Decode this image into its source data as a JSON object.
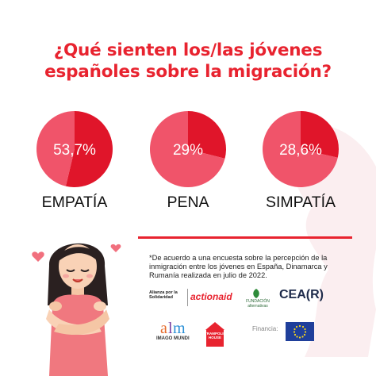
{
  "title": {
    "line1": "¿Qué sienten los/las jóvenes",
    "line2": "españoles sobre la migración?"
  },
  "colors": {
    "accent": "#e8232f",
    "slice_light": "#f0546a",
    "slice_dark": "#e0152a"
  },
  "chart_data": [
    {
      "type": "pie",
      "categories": [
        "EMPATÍA",
        "Resto"
      ],
      "values": [
        53.7,
        46.3
      ],
      "data_label": "53,7%"
    },
    {
      "type": "pie",
      "categories": [
        "PENA",
        "Resto"
      ],
      "values": [
        29,
        71
      ],
      "data_label": "29%"
    },
    {
      "type": "pie",
      "categories": [
        "SIMPATÍA",
        "Resto"
      ],
      "values": [
        28.6,
        71.4
      ],
      "data_label": "28,6%"
    }
  ],
  "pies": [
    {
      "label": "EMPATÍA",
      "value_text": "53,7%"
    },
    {
      "label": "PENA",
      "value_text": "29%"
    },
    {
      "label": "SIMPATÍA",
      "value_text": "28,6%"
    }
  ],
  "footnote": "*De acuerdo a una encuesta sobre la percepción de la inmigración entre los jóvenes en España, Dinamarca y Rumanía realizada en julio de 2022.",
  "logos": {
    "alianza": "Alianza por la Solidaridad",
    "actionaid": "actionaid",
    "fundacion": "FUNDACIÓN alternativas",
    "cear": "CEA(R)",
    "imago": "IMAGO MUNDI",
    "tramplin": "TRAMPOLIN HOUSE",
    "financia": "Financia:"
  }
}
